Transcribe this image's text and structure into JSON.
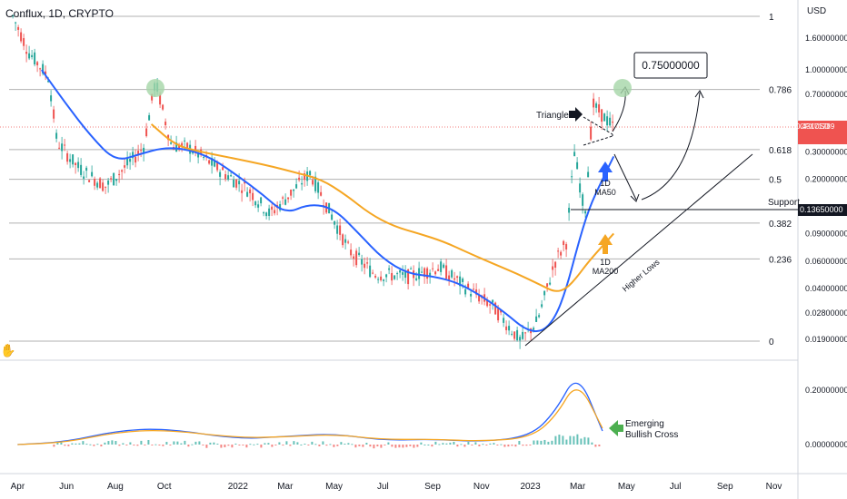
{
  "header": {
    "title": "Conflux, 1D, CRYPTO",
    "currency": "USD"
  },
  "price_tag": {
    "symbol": "CFXUSD",
    "price": "0.43171789",
    "countdown": "15:44:49"
  },
  "support_tag": {
    "label": "Support",
    "value": "0.13650000"
  },
  "annotations": {
    "triangle": "Triangle",
    "target": "0.75000000",
    "ma50_label_1": "1D",
    "ma50_label_2": "MA50",
    "ma200_label_1": "1D",
    "ma200_label_2": "MA200",
    "higher_lows": "Higher Lows",
    "bullish_cross_1": "Emerging",
    "bullish_cross_2": "Bullish Cross"
  },
  "colors": {
    "ma50": "#2962ff",
    "ma200": "#f5a623",
    "candle_up": "#26a69a",
    "candle_down": "#ef5350",
    "fib_line": "#9e9e9e",
    "signal_green": "#4caf50"
  },
  "chart_data": [
    {
      "type": "line",
      "title": "Conflux, 1D, CRYPTO",
      "yscale": "log",
      "y_unit": "USD",
      "x_ticks": [
        "Apr",
        "Jun",
        "Aug",
        "Oct",
        "2022",
        "Mar",
        "May",
        "Jul",
        "Sep",
        "Nov",
        "2023",
        "Mar",
        "May",
        "Jul",
        "Sep",
        "Nov"
      ],
      "y_ticks": [
        "1.60000000",
        "1.00000000",
        "0.70000000",
        "0.30000000",
        "0.20000000",
        "0.09000000",
        "0.06000000",
        "0.04000000",
        "0.02800000",
        "0.01900000"
      ],
      "fib_levels": [
        {
          "label": "1",
          "value": 2.2
        },
        {
          "label": "0.786",
          "value": 0.75
        },
        {
          "label": "0.618",
          "value": 0.31
        },
        {
          "label": "0.5",
          "value": 0.2
        },
        {
          "label": "0.382",
          "value": 0.105
        },
        {
          "label": "0.236",
          "value": 0.062
        },
        {
          "label": "0",
          "value": 0.0185
        }
      ],
      "support": 0.1365,
      "target": 0.75,
      "last_price": 0.43171789,
      "series": [
        {
          "name": "Price",
          "x": [
            "2021-03-26",
            "2021-04-15",
            "2021-05-10",
            "2021-05-20",
            "2021-06-15",
            "2021-07-20",
            "2021-08-10",
            "2021-09-05",
            "2021-09-20",
            "2021-10-10",
            "2021-11-01",
            "2021-12-15",
            "2022-01-15",
            "2022-02-10",
            "2022-03-01",
            "2022-04-01",
            "2022-05-01",
            "2022-05-20",
            "2022-06-20",
            "2022-08-01",
            "2022-09-10",
            "2022-10-15",
            "2022-11-15",
            "2022-12-20",
            "2023-01-10",
            "2023-02-01",
            "2023-02-15",
            "2023-02-25",
            "2023-03-10",
            "2023-03-20",
            "2023-04-15"
          ],
          "values": [
            2.2,
            1.3,
            0.9,
            0.35,
            0.24,
            0.18,
            0.23,
            0.32,
            0.85,
            0.33,
            0.32,
            0.22,
            0.17,
            0.12,
            0.15,
            0.22,
            0.11,
            0.07,
            0.05,
            0.048,
            0.055,
            0.04,
            0.031,
            0.0185,
            0.025,
            0.06,
            0.08,
            0.3,
            0.12,
            0.6,
            0.43
          ]
        },
        {
          "name": "1D MA50",
          "x": [
            "2021-05-01",
            "2021-06-01",
            "2021-07-01",
            "2021-08-01",
            "2021-09-01",
            "2021-10-01",
            "2021-11-01",
            "2021-12-01",
            "2022-01-01",
            "2022-02-01",
            "2022-03-01",
            "2022-04-01",
            "2022-05-01",
            "2022-06-01",
            "2022-07-01",
            "2022-08-01",
            "2022-09-01",
            "2022-10-01",
            "2022-11-01",
            "2022-12-01",
            "2022-12-25",
            "2023-01-15",
            "2023-02-01",
            "2023-02-15",
            "2023-03-01",
            "2023-03-15",
            "2023-04-01",
            "2023-04-15"
          ],
          "values": [
            1.0,
            0.6,
            0.38,
            0.26,
            0.29,
            0.32,
            0.31,
            0.27,
            0.21,
            0.16,
            0.12,
            0.14,
            0.13,
            0.09,
            0.062,
            0.05,
            0.048,
            0.044,
            0.036,
            0.028,
            0.022,
            0.021,
            0.026,
            0.04,
            0.075,
            0.13,
            0.2,
            0.28
          ]
        },
        {
          "name": "1D MA200",
          "x": [
            "2021-09-15",
            "2021-10-15",
            "2021-11-15",
            "2021-12-15",
            "2022-01-15",
            "2022-02-15",
            "2022-03-15",
            "2022-04-15",
            "2022-05-15",
            "2022-06-15",
            "2022-07-15",
            "2022-08-15",
            "2022-09-15",
            "2022-10-15",
            "2022-11-15",
            "2022-12-15",
            "2023-01-15",
            "2023-02-01",
            "2023-02-15",
            "2023-03-01",
            "2023-03-15",
            "2023-04-15"
          ],
          "values": [
            0.45,
            0.33,
            0.3,
            0.28,
            0.26,
            0.24,
            0.22,
            0.2,
            0.16,
            0.12,
            0.1,
            0.09,
            0.08,
            0.068,
            0.058,
            0.05,
            0.042,
            0.038,
            0.04,
            0.048,
            0.06,
            0.09
          ]
        }
      ]
    },
    {
      "type": "line",
      "title": "",
      "y_ticks": [
        "0.20000000",
        "0.00000000"
      ],
      "series": [
        {
          "name": "",
          "x": [
            "2021-04",
            "2021-06",
            "2021-08",
            "2021-10",
            "2022-01",
            "2022-03",
            "2022-05",
            "2022-07",
            "2022-09",
            "2022-11",
            "2023-01",
            "2023-02",
            "2023-03",
            "2023-04"
          ],
          "values": [
            0.0,
            0.01,
            0.05,
            0.06,
            0.02,
            0.03,
            0.04,
            0.015,
            0.02,
            0.01,
            0.03,
            0.12,
            0.27,
            0.05
          ]
        },
        {
          "name": "",
          "x": [
            "2021-04",
            "2021-06",
            "2021-08",
            "2021-10",
            "2022-01",
            "2022-03",
            "2022-05",
            "2022-07",
            "2022-09",
            "2022-11",
            "2023-01",
            "2023-02",
            "2023-03",
            "2023-04"
          ],
          "values": [
            0.0,
            0.008,
            0.045,
            0.055,
            0.025,
            0.028,
            0.038,
            0.018,
            0.02,
            0.012,
            0.025,
            0.1,
            0.24,
            0.06
          ]
        }
      ]
    }
  ]
}
